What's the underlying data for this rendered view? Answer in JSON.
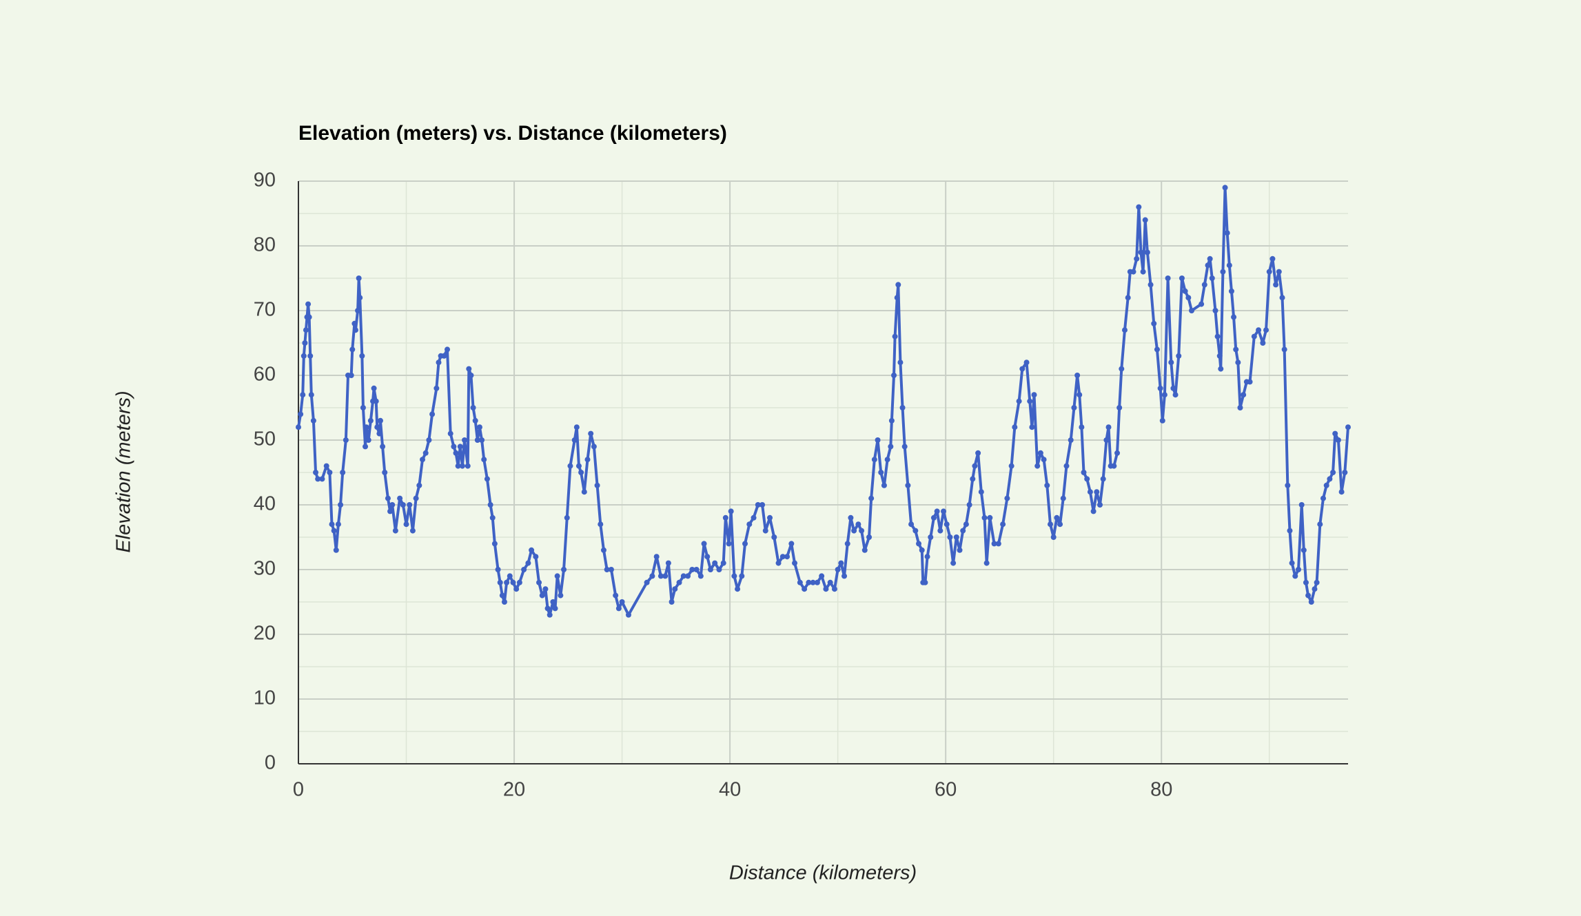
{
  "chart_data": {
    "type": "line",
    "title": "Elevation (meters) vs. Distance (kilometers)",
    "x_label": "Distance (kilometers)",
    "y_label": "Elevation (meters)",
    "color": "#3f62c5",
    "background": "#f1f7ea",
    "grid": true,
    "markers": true,
    "xlim": [
      0,
      97.3
    ],
    "ylim": [
      0,
      90
    ],
    "xticks": [
      0,
      20,
      40,
      60,
      80
    ],
    "yticks": [
      0,
      10,
      20,
      30,
      40,
      50,
      60,
      70,
      80,
      90
    ],
    "x_minor_gridlines": [
      10,
      30,
      50,
      70,
      90
    ],
    "y_minor_gridlines": [
      5,
      15,
      25,
      35,
      45,
      55,
      65,
      75,
      85
    ],
    "x": [
      0,
      0.2,
      0.4,
      0.5,
      0.6,
      0.7,
      0.8,
      0.9,
      1.0,
      1.1,
      1.2,
      1.4,
      1.6,
      1.8,
      2.2,
      2.6,
      2.9,
      3.1,
      3.3,
      3.5,
      3.7,
      3.9,
      4.1,
      4.4,
      4.6,
      4.9,
      5.0,
      5.2,
      5.3,
      5.5,
      5.6,
      5.7,
      5.9,
      6.0,
      6.2,
      6.3,
      6.5,
      6.7,
      6.9,
      7.0,
      7.2,
      7.3,
      7.5,
      7.6,
      7.8,
      8.0,
      8.3,
      8.5,
      8.7,
      9.0,
      9.4,
      9.7,
      10.0,
      10.3,
      10.6,
      10.9,
      11.2,
      11.5,
      11.8,
      12.1,
      12.4,
      12.8,
      13.0,
      13.2,
      13.5,
      13.8,
      14.1,
      14.4,
      14.6,
      14.8,
      15.0,
      15.2,
      15.4,
      15.7,
      15.8,
      16.0,
      16.2,
      16.4,
      16.6,
      16.8,
      17.0,
      17.2,
      17.5,
      17.8,
      18.0,
      18.2,
      18.5,
      18.7,
      18.9,
      19.1,
      19.3,
      19.6,
      19.9,
      20.2,
      20.5,
      20.9,
      21.3,
      21.6,
      22.0,
      22.3,
      22.6,
      22.9,
      23.1,
      23.3,
      23.6,
      23.8,
      24.0,
      24.3,
      24.6,
      24.9,
      25.2,
      25.6,
      25.8,
      26.0,
      26.2,
      26.5,
      26.8,
      27.1,
      27.4,
      27.7,
      28.0,
      28.3,
      28.6,
      29.0,
      29.4,
      29.7,
      30.0,
      30.6,
      32.3,
      32.8,
      33.2,
      33.6,
      34.0,
      34.3,
      34.6,
      34.9,
      35.3,
      35.7,
      36.1,
      36.5,
      36.9,
      37.3,
      37.6,
      37.9,
      38.2,
      38.6,
      39.0,
      39.4,
      39.6,
      39.9,
      40.1,
      40.4,
      40.7,
      41.1,
      41.4,
      41.8,
      42.2,
      42.6,
      43.0,
      43.3,
      43.7,
      44.1,
      44.5,
      44.9,
      45.3,
      45.7,
      46.0,
      46.5,
      46.9,
      47.3,
      47.7,
      48.1,
      48.5,
      48.9,
      49.3,
      49.7,
      50.0,
      50.3,
      50.6,
      50.9,
      51.2,
      51.5,
      51.9,
      52.2,
      52.5,
      52.9,
      53.1,
      53.4,
      53.7,
      54.0,
      54.3,
      54.6,
      54.9,
      55.0,
      55.2,
      55.3,
      55.5,
      55.6,
      55.8,
      56.0,
      56.2,
      56.5,
      56.8,
      57.2,
      57.5,
      57.8,
      57.9,
      58.1,
      58.3,
      58.6,
      58.9,
      59.2,
      59.5,
      59.8,
      60.1,
      60.4,
      60.7,
      61.0,
      61.3,
      61.6,
      61.9,
      62.2,
      62.5,
      62.7,
      63.0,
      63.3,
      63.6,
      63.8,
      64.1,
      64.5,
      64.9,
      65.3,
      65.7,
      66.1,
      66.4,
      66.8,
      67.1,
      67.5,
      67.8,
      68.0,
      68.2,
      68.5,
      68.8,
      69.1,
      69.4,
      69.7,
      70.0,
      70.3,
      70.6,
      70.9,
      71.2,
      71.6,
      71.9,
      72.2,
      72.4,
      72.6,
      72.8,
      73.1,
      73.4,
      73.7,
      74.0,
      74.3,
      74.6,
      74.9,
      75.1,
      75.3,
      75.6,
      75.9,
      76.1,
      76.3,
      76.6,
      76.9,
      77.1,
      77.4,
      77.7,
      77.9,
      78.1,
      78.3,
      78.5,
      78.7,
      79.0,
      79.3,
      79.6,
      79.9,
      80.1,
      80.3,
      80.6,
      80.9,
      81.1,
      81.3,
      81.6,
      81.9,
      82.2,
      82.5,
      82.8,
      83.7,
      84.0,
      84.3,
      84.5,
      84.7,
      85.0,
      85.2,
      85.4,
      85.5,
      85.7,
      85.9,
      86.1,
      86.3,
      86.5,
      86.7,
      86.9,
      87.1,
      87.3,
      87.6,
      87.9,
      88.2,
      88.6,
      89.0,
      89.4,
      89.7,
      90.0,
      90.3,
      90.6,
      90.9,
      91.2,
      91.4,
      91.7,
      91.9,
      92.1,
      92.4,
      92.7,
      93.0,
      93.2,
      93.4,
      93.6,
      93.9,
      94.2,
      94.4,
      94.7,
      95.0,
      95.3,
      95.6,
      95.9,
      96.1,
      96.4,
      96.7,
      97.0,
      97.3
    ],
    "values": [
      52,
      54,
      57,
      63,
      65,
      67,
      69,
      71,
      69,
      63,
      57,
      53,
      45,
      44,
      44,
      46,
      45,
      37,
      36,
      33,
      37,
      40,
      45,
      50,
      60,
      60,
      64,
      68,
      67,
      70,
      75,
      72,
      63,
      55,
      49,
      52,
      50,
      53,
      56,
      58,
      56,
      52,
      51,
      53,
      49,
      45,
      41,
      39,
      40,
      36,
      41,
      40,
      37,
      40,
      36,
      41,
      43,
      47,
      48,
      50,
      54,
      58,
      62,
      63,
      63,
      64,
      51,
      49,
      48,
      46,
      49,
      46,
      50,
      46,
      61,
      60,
      55,
      53,
      50,
      52,
      50,
      47,
      44,
      40,
      38,
      34,
      30,
      28,
      26,
      25,
      28,
      29,
      28,
      27,
      28,
      30,
      31,
      33,
      32,
      28,
      26,
      27,
      24,
      23,
      25,
      24,
      29,
      26,
      30,
      38,
      46,
      50,
      52,
      46,
      45,
      42,
      47,
      51,
      49,
      43,
      37,
      33,
      30,
      30,
      26,
      24,
      25,
      23,
      28,
      29,
      32,
      29,
      29,
      31,
      25,
      27,
      28,
      29,
      29,
      30,
      30,
      29,
      34,
      32,
      30,
      31,
      30,
      31,
      38,
      34,
      39,
      29,
      27,
      29,
      34,
      37,
      38,
      40,
      40,
      36,
      38,
      35,
      31,
      32,
      32,
      34,
      31,
      28,
      27,
      28,
      28,
      28,
      29,
      27,
      28,
      27,
      30,
      31,
      29,
      34,
      38,
      36,
      37,
      36,
      33,
      35,
      41,
      47,
      50,
      45,
      43,
      47,
      49,
      53,
      60,
      66,
      72,
      74,
      62,
      55,
      49,
      43,
      37,
      36,
      34,
      33,
      28,
      28,
      32,
      35,
      38,
      39,
      36,
      39,
      37,
      35,
      31,
      35,
      33,
      36,
      37,
      40,
      44,
      46,
      48,
      42,
      38,
      31,
      38,
      34,
      34,
      37,
      41,
      46,
      52,
      56,
      61,
      62,
      56,
      52,
      57,
      46,
      48,
      47,
      43,
      37,
      35,
      38,
      37,
      41,
      46,
      50,
      55,
      60,
      57,
      52,
      45,
      44,
      42,
      39,
      42,
      40,
      44,
      50,
      52,
      46,
      46,
      48,
      55,
      61,
      67,
      72,
      76,
      76,
      78,
      86,
      79,
      76,
      84,
      79,
      74,
      68,
      64,
      58,
      53,
      57,
      75,
      62,
      58,
      57,
      63,
      75,
      73,
      72,
      70,
      71,
      74,
      77,
      78,
      75,
      70,
      66,
      63,
      61,
      76,
      89,
      82,
      77,
      73,
      69,
      64,
      62,
      55,
      57,
      59,
      59,
      66,
      67,
      65,
      67,
      76,
      78,
      74,
      76,
      72,
      64,
      43,
      36,
      31,
      29,
      30,
      40,
      33,
      28,
      26,
      25,
      27,
      28,
      37,
      41,
      43,
      44,
      45,
      51,
      50,
      42,
      45,
      52
    ]
  }
}
